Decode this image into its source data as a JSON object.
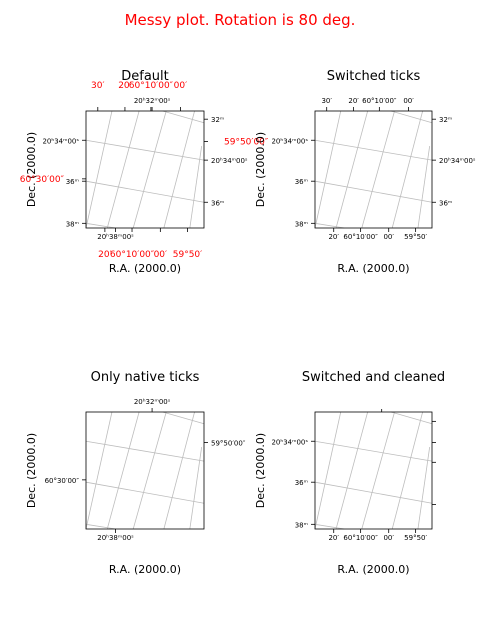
{
  "figure": {
    "title": "Messy plot. Rotation is 80 deg.",
    "title_color": "#ff0000",
    "grid_color": "#bdbdbd"
  },
  "chart_data": [
    {
      "type": "scatter",
      "title": "Default",
      "xlabel": "R.A. (2000.0)",
      "ylabel": "Dec. (2000.0)",
      "grid": true,
      "native_ticks": {
        "top": [
          "20ʰ32ᵐ00ˢ"
        ],
        "bottom": [
          "20ʰ38ᵐ00ˢ"
        ],
        "left": [
          "20ʰ34ᵐ00ˢ",
          "36ᵐ",
          "38ᵐ"
        ],
        "right": [
          "32ᵐ",
          "20ʰ34ᵐ00ˢ",
          "36ᵐ"
        ]
      },
      "switched_ticks_red": {
        "top": [
          "30′",
          "20′",
          "60°10′00″",
          "00′"
        ],
        "bottom": [
          "20′",
          "60°10′00″",
          "00′",
          "59°50′"
        ],
        "left": [
          "60°30′00″"
        ],
        "right": [
          "59°50′00″"
        ]
      }
    },
    {
      "type": "scatter",
      "title": "Switched ticks",
      "xlabel": "R.A. (2000.0)",
      "ylabel": "Dec. (2000.0)",
      "grid": true,
      "ticks": {
        "top": [
          "30′",
          "20′",
          "60°10′00″",
          "00′"
        ],
        "bottom": [
          "20′",
          "60°10′00″",
          "00′",
          "59°50′"
        ],
        "left": [
          "20ʰ34ᵐ00ˢ",
          "36ᵐ",
          "38ᵐ"
        ],
        "right": [
          "32ᵐ",
          "20ʰ34ᵐ00ˢ",
          "36ᵐ"
        ]
      }
    },
    {
      "type": "scatter",
      "title": "Only native ticks",
      "xlabel": "R.A. (2000.0)",
      "ylabel": "Dec. (2000.0)",
      "grid": true,
      "ticks": {
        "top": [
          "20ʰ32ᵐ00ˢ"
        ],
        "bottom": [
          "20ʰ38ᵐ00ˢ"
        ],
        "left": [
          "60°30′00″"
        ],
        "right": [
          "59°50′00″"
        ]
      }
    },
    {
      "type": "scatter",
      "title": "Switched and cleaned",
      "xlabel": "R.A. (2000.0)",
      "ylabel": "Dec. (2000.0)",
      "grid": true,
      "ticks": {
        "top": [],
        "bottom": [
          "20′",
          "60°10′00″",
          "00′",
          "59°50′"
        ],
        "left": [
          "20ʰ34ᵐ00ˢ",
          "36ᵐ",
          "38ᵐ"
        ],
        "right": []
      }
    }
  ]
}
